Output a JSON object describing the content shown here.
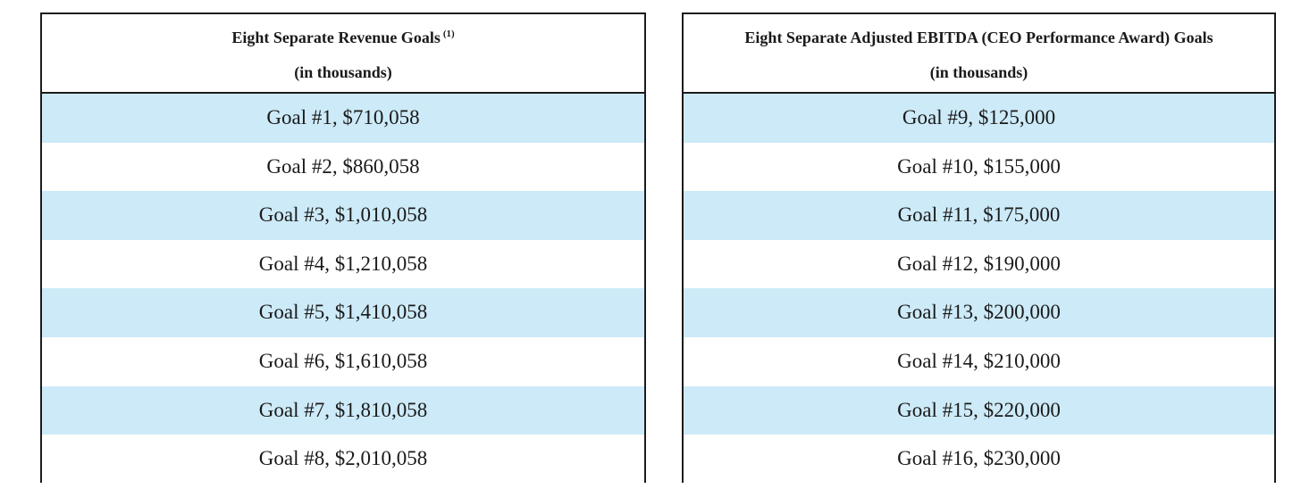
{
  "colors": {
    "row_shade": "#cdeaf8",
    "border": "#1c1c1c",
    "background": "#ffffff"
  },
  "revenue_table": {
    "title": "Eight Separate Revenue Goals",
    "footnote_marker": "(1)",
    "subtitle": "(in thousands)",
    "rows": [
      "Goal #1, $710,058",
      "Goal #2, $860,058",
      "Goal #3, $1,010,058",
      "Goal #4, $1,210,058",
      "Goal #5, $1,410,058",
      "Goal #6, $1,610,058",
      "Goal #7, $1,810,058",
      "Goal #8, $2,010,058"
    ]
  },
  "ebitda_table": {
    "title": "Eight Separate Adjusted EBITDA (CEO Performance Award) Goals",
    "subtitle": "(in thousands)",
    "rows": [
      "Goal #9, $125,000",
      "Goal #10, $155,000",
      "Goal #11, $175,000",
      "Goal #12, $190,000",
      "Goal #13, $200,000",
      "Goal #14, $210,000",
      "Goal #15, $220,000",
      "Goal #16, $230,000"
    ]
  }
}
